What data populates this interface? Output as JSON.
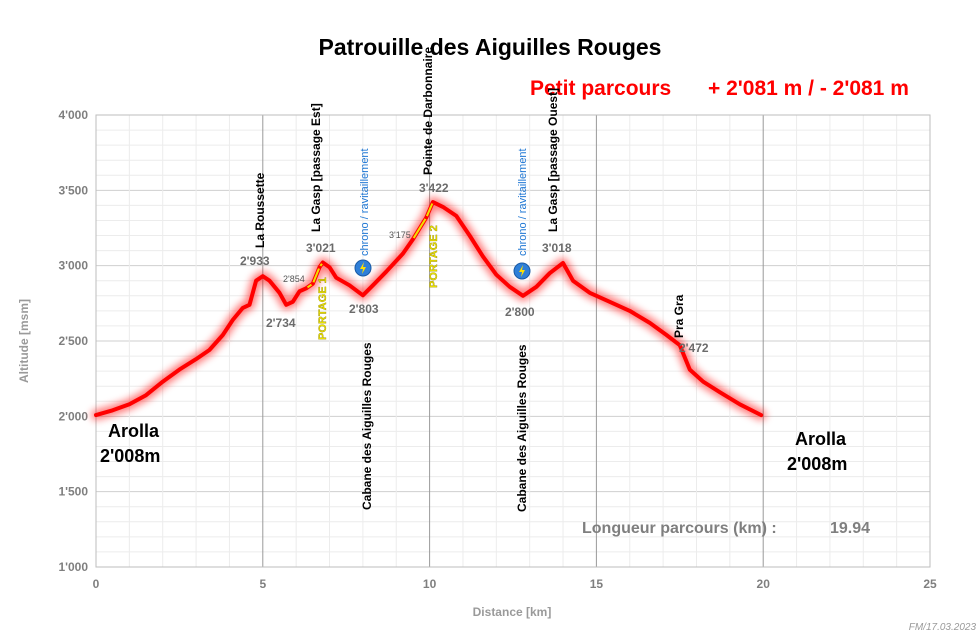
{
  "chart_data": {
    "type": "line",
    "title": "Patrouille des Aiguilles Rouges",
    "subtitle": "Petit parcours",
    "elevation_summary": "+ 2'081 m / - 2'081 m",
    "xlabel": "Distance [km]",
    "ylabel": "Altitude [msm]",
    "xlim": [
      0,
      25
    ],
    "ylim": [
      1000,
      4000
    ],
    "x_ticks": [
      0,
      5,
      10,
      15,
      20,
      25
    ],
    "x_tick_labels": [
      "0",
      "5",
      "10",
      "15",
      "20",
      "25"
    ],
    "y_ticks": [
      1000,
      1500,
      2000,
      2500,
      3000,
      3500,
      4000
    ],
    "y_tick_labels": [
      "1'000",
      "1'500",
      "2'000",
      "2'500",
      "3'000",
      "3'500",
      "4'000"
    ],
    "grid": true,
    "line_color": "#ff0000",
    "portage_color": "#f0e000",
    "series": [
      {
        "values": [
          [
            0,
            2008
          ],
          [
            0.5,
            2040
          ],
          [
            1,
            2080
          ],
          [
            1.5,
            2140
          ],
          [
            2,
            2230
          ],
          [
            2.5,
            2310
          ],
          [
            3,
            2380
          ],
          [
            3.4,
            2440
          ],
          [
            3.8,
            2540
          ],
          [
            4.1,
            2640
          ],
          [
            4.4,
            2720
          ],
          [
            4.6,
            2740
          ],
          [
            4.8,
            2900
          ],
          [
            5.0,
            2930
          ],
          [
            5.2,
            2900
          ],
          [
            5.5,
            2820
          ],
          [
            5.7,
            2740
          ],
          [
            5.9,
            2760
          ],
          [
            6.1,
            2830
          ],
          [
            6.3,
            2850
          ],
          [
            6.5,
            2880
          ],
          [
            6.7,
            2990
          ],
          [
            6.8,
            3021
          ],
          [
            7.0,
            2990
          ],
          [
            7.2,
            2920
          ],
          [
            7.6,
            2870
          ],
          [
            7.9,
            2820
          ],
          [
            8.0,
            2803
          ],
          [
            8.3,
            2870
          ],
          [
            8.7,
            2960
          ],
          [
            9.2,
            3080
          ],
          [
            9.5,
            3175
          ],
          [
            9.9,
            3320
          ],
          [
            10.1,
            3422
          ],
          [
            10.4,
            3390
          ],
          [
            10.8,
            3330
          ],
          [
            11.2,
            3200
          ],
          [
            11.6,
            3060
          ],
          [
            12.0,
            2940
          ],
          [
            12.4,
            2860
          ],
          [
            12.8,
            2800
          ],
          [
            13.2,
            2860
          ],
          [
            13.6,
            2950
          ],
          [
            14.0,
            3018
          ],
          [
            14.3,
            2900
          ],
          [
            14.8,
            2820
          ],
          [
            15.4,
            2760
          ],
          [
            16.0,
            2700
          ],
          [
            16.6,
            2620
          ],
          [
            17.1,
            2540
          ],
          [
            17.5,
            2472
          ],
          [
            17.8,
            2310
          ],
          [
            18.2,
            2230
          ],
          [
            18.7,
            2160
          ],
          [
            19.3,
            2080
          ],
          [
            19.94,
            2008
          ]
        ]
      }
    ],
    "portages": [
      {
        "label": "PORTAGE 1",
        "from_km": 6.3,
        "to_km": 6.8
      },
      {
        "label": "PORTAGE 2",
        "from_km": 9.5,
        "to_km": 10.1
      }
    ],
    "annotations": [
      {
        "name": "La Roussette",
        "km": 4.95,
        "altitude_label": "2'933"
      },
      {
        "name": "La Gasp [passage Est]",
        "km": 6.8,
        "altitude_label": "3'021"
      },
      {
        "name": "Pointe de Darbonnaire",
        "km": 10.2,
        "altitude_label": "3'422"
      },
      {
        "name": "La Gasp [passage Ouest]",
        "km": 14.0,
        "altitude_label": "3'018"
      },
      {
        "name": "Pra Gra",
        "km": 17.5,
        "altitude_label": "2'472"
      },
      {
        "name": "Cabane des Aiguilles Rouges",
        "km": 8.0,
        "altitude_label": "2'803"
      },
      {
        "name": "Cabane des Aiguilles Rouges",
        "km": 12.8,
        "altitude_label": "2'800"
      }
    ],
    "minor_labels": [
      {
        "km": 5.7,
        "altitude_label": "2'734"
      },
      {
        "km": 6.2,
        "altitude_label": "2'854"
      },
      {
        "km": 9.4,
        "altitude_label": "3'175"
      }
    ],
    "chrono_label": "chrono / ravitaillement",
    "start": {
      "name": "Arolla",
      "altitude": "2'008m"
    },
    "finish": {
      "name": "Arolla",
      "altitude": "2'008m"
    },
    "length_label": "Longueur parcours (km) :",
    "length_value": "19.94",
    "credit": "FM/17.03.2023"
  }
}
